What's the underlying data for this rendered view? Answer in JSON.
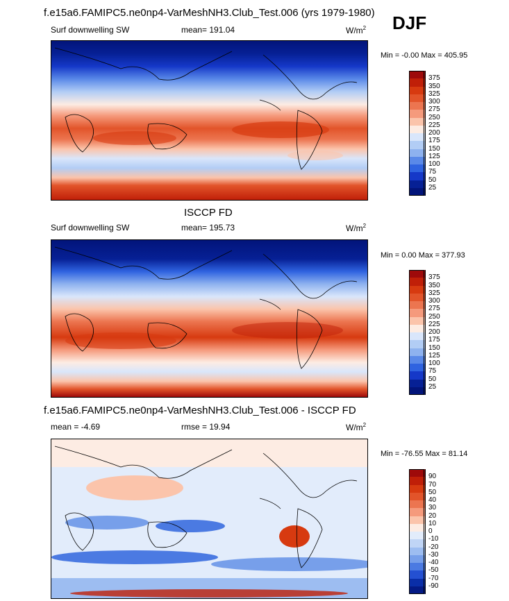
{
  "header": {
    "title": "f.e15a6.FAMIPC5.ne0np4-VarMeshNH3.Club_Test.006 (yrs 1979-1980)",
    "season": "DJF"
  },
  "panels": [
    {
      "id": "model",
      "field": "Surf downwelling SW",
      "stat": "mean= 191.04",
      "units_base": "W/m",
      "units_exp": "2",
      "minmax": "Min =  -0.00 Max = 405.95",
      "colorbar": {
        "labels": [
          "375",
          "350",
          "325",
          "300",
          "275",
          "250",
          "225",
          "200",
          "175",
          "150",
          "125",
          "100",
          "75",
          "50",
          "25"
        ],
        "colors": [
          "#9e0a0a",
          "#c01f08",
          "#d73a10",
          "#e2542a",
          "#ec7550",
          "#f59a7c",
          "#fbc4ab",
          "#fdece3",
          "#d9e6fb",
          "#b2cdf5",
          "#8eb2ef",
          "#5a89e8",
          "#2f63e0",
          "#1538c8",
          "#062095",
          "#02147a"
        ]
      }
    },
    {
      "id": "obs",
      "subtitle": "ISCCP FD",
      "field": "Surf downwelling SW",
      "stat": "mean= 195.73",
      "units_base": "W/m",
      "units_exp": "2",
      "minmax": "Min =   0.00 Max = 377.93",
      "colorbar": {
        "labels": [
          "375",
          "350",
          "325",
          "300",
          "275",
          "250",
          "225",
          "200",
          "175",
          "150",
          "125",
          "100",
          "75",
          "50",
          "25"
        ],
        "colors": [
          "#9e0a0a",
          "#c01f08",
          "#d73a10",
          "#e2542a",
          "#ec7550",
          "#f59a7c",
          "#fbc4ab",
          "#fdece3",
          "#d9e6fb",
          "#b2cdf5",
          "#8eb2ef",
          "#5a89e8",
          "#2f63e0",
          "#1538c8",
          "#062095",
          "#02147a"
        ]
      }
    },
    {
      "id": "diff",
      "subtitle": "f.e15a6.FAMIPC5.ne0np4-VarMeshNH3.Club_Test.006 - ISCCP FD",
      "stat_left": "mean =  -4.69",
      "stat": "rmse =  19.94",
      "units_base": "W/m",
      "units_exp": "2",
      "minmax": "Min = -76.55 Max =  81.14",
      "colorbar": {
        "labels": [
          "90",
          "70",
          "50",
          "40",
          "30",
          "20",
          "10",
          "0",
          "-10",
          "-20",
          "-30",
          "-40",
          "-50",
          "-70",
          "-90"
        ],
        "colors": [
          "#9e0a0a",
          "#c01f08",
          "#d73a10",
          "#e2542a",
          "#ec7550",
          "#f59a7c",
          "#fbc4ab",
          "#fdece3",
          "#e2ecfb",
          "#c0d5f6",
          "#9dbdf1",
          "#779fea",
          "#4b7ae2",
          "#2450d2",
          "#0a2ea8",
          "#041a85"
        ]
      }
    }
  ],
  "palette": {
    "ocean_north": "#02147a",
    "land_outline": "#000000"
  }
}
